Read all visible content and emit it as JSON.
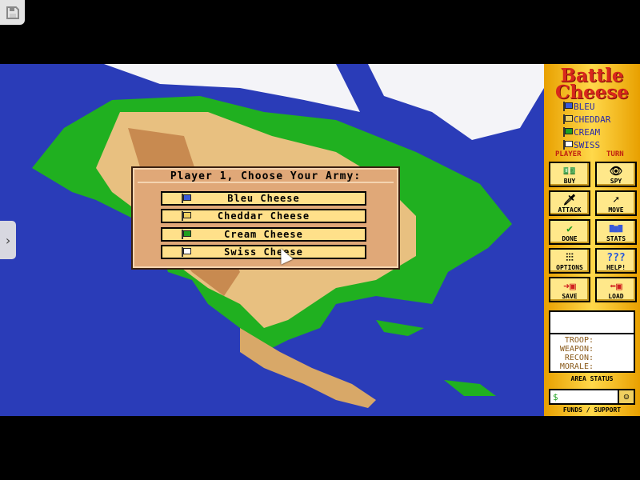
{
  "window": {
    "save_icon": "floppy-disk-icon",
    "side_tab_icon": "chevron-right-icon",
    "side_tab_glyph": "›"
  },
  "panel": {
    "title_line1": "Battle",
    "title_line2": "Cheese",
    "players": [
      {
        "label": "BLEU",
        "color": "#3a5ad8"
      },
      {
        "label": "CHEDDAR",
        "color": "#f0d060"
      },
      {
        "label": "CREAM",
        "color": "#20a020"
      },
      {
        "label": "SWISS",
        "color": "#ffffff"
      }
    ],
    "player_label": "PLAYER",
    "turn_label": "TURN",
    "buttons": [
      {
        "label": "BUY",
        "icon": "money-icon",
        "glyph": "💵"
      },
      {
        "label": "SPY",
        "icon": "eye-icon",
        "glyph": "👁"
      },
      {
        "label": "ATTACK",
        "icon": "sword-icon",
        "glyph": "🗡"
      },
      {
        "label": "MOVE",
        "icon": "move-arrow-icon",
        "glyph": "➚"
      },
      {
        "label": "DONE",
        "icon": "checkmark-icon",
        "glyph": "✔"
      },
      {
        "label": "STATS",
        "icon": "bar-chart-icon",
        "glyph": "▇▆▇"
      },
      {
        "label": "OPTIONS",
        "icon": "sliders-icon",
        "glyph": "⫶⫶⫶"
      },
      {
        "label": "HELP!",
        "icon": "question-marks-icon",
        "glyph": "???"
      },
      {
        "label": "SAVE",
        "icon": "save-disk-icon",
        "glyph": "➜▣"
      },
      {
        "label": "LOAD",
        "icon": "load-disk-icon",
        "glyph": "⬅▣"
      }
    ],
    "status_fields": [
      "TROOP:",
      "WEAPON:",
      "RECON:",
      "MORALE:"
    ],
    "area_status_label": "AREA STATUS",
    "funds_value": "$",
    "support_icon": "smiley-face-icon",
    "funds_label": "FUNDS / SUPPORT"
  },
  "dialog": {
    "title": "Player 1, Choose Your Army:",
    "options": [
      {
        "label": "Bleu Cheese",
        "color": "#3a5ad8"
      },
      {
        "label": "Cheddar Cheese",
        "color": "#f0d060"
      },
      {
        "label": "Cream Cheese",
        "color": "#20a020"
      },
      {
        "label": "Swiss Cheese",
        "color": "#ffffff"
      }
    ]
  }
}
